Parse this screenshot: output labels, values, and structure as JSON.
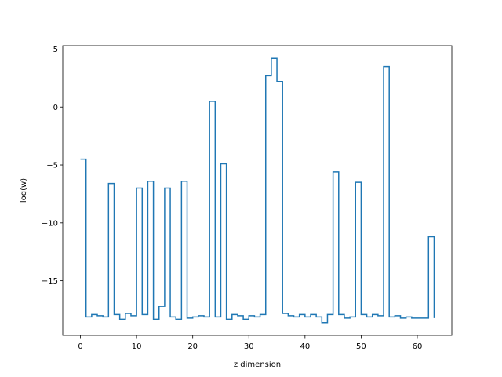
{
  "chart_data": {
    "type": "line",
    "style": "step",
    "title": "",
    "xlabel": "z dimension",
    "ylabel": "log(w)",
    "xlim": [
      -3.15,
      66.15
    ],
    "ylim": [
      -19.7,
      5.3
    ],
    "xticks": [
      0,
      10,
      20,
      30,
      40,
      50,
      60
    ],
    "yticks": [
      5,
      0,
      -5,
      -10,
      -15
    ],
    "ytick_labels": [
      "5",
      "0",
      "−5",
      "−10",
      "−15"
    ],
    "grid": false,
    "legend": "none",
    "series": [
      {
        "color": "#1f77b4",
        "x": [
          0,
          1,
          2,
          3,
          4,
          5,
          6,
          7,
          8,
          9,
          10,
          11,
          12,
          13,
          14,
          15,
          16,
          17,
          18,
          19,
          20,
          21,
          22,
          23,
          24,
          25,
          26,
          27,
          28,
          29,
          30,
          31,
          32,
          33,
          34,
          35,
          36,
          37,
          38,
          39,
          40,
          41,
          42,
          43,
          44,
          45,
          46,
          47,
          48,
          49,
          50,
          51,
          52,
          53,
          54,
          55,
          56,
          57,
          58,
          59,
          60,
          61,
          62,
          63
        ],
        "y": [
          -4.5,
          -18.1,
          -17.9,
          -18.0,
          -18.1,
          -6.6,
          -17.9,
          -18.3,
          -17.8,
          -18.0,
          -7.0,
          -17.9,
          -6.4,
          -18.3,
          -17.2,
          -7.0,
          -18.1,
          -18.3,
          -6.4,
          -18.2,
          -18.1,
          -18.0,
          -18.1,
          0.5,
          -18.1,
          -4.9,
          -18.3,
          -17.9,
          -18.0,
          -18.3,
          -18.0,
          -18.1,
          -17.9,
          2.7,
          4.2,
          2.2,
          -17.8,
          -18.0,
          -18.1,
          -17.9,
          -18.1,
          -17.9,
          -18.1,
          -18.6,
          -17.9,
          -5.6,
          -17.9,
          -18.2,
          -18.1,
          -6.5,
          -17.9,
          -18.1,
          -17.9,
          -18.0,
          3.5,
          -18.1,
          -18.0,
          -18.2,
          -18.1,
          -18.2,
          -18.2,
          -18.2,
          -11.2,
          -18.2
        ]
      }
    ]
  }
}
